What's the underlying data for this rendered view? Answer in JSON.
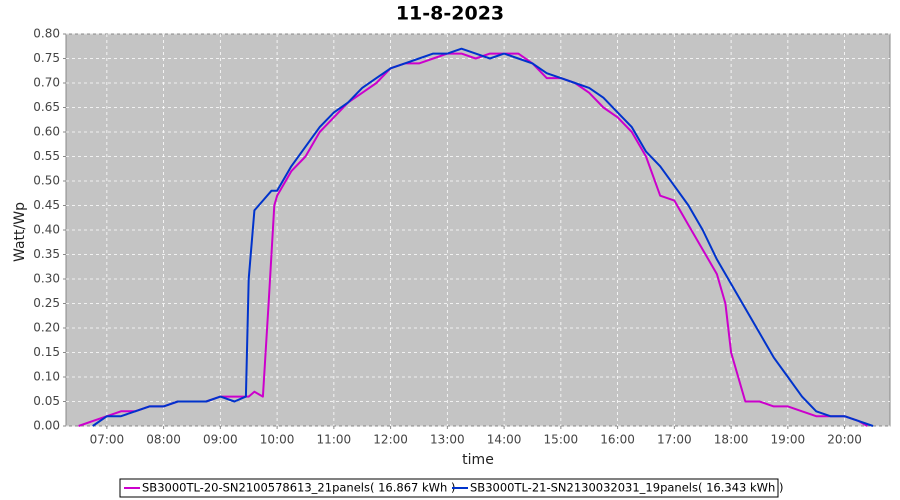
{
  "chart_data": {
    "type": "line",
    "title": "11-8-2023",
    "xlabel": "time",
    "ylabel": "Watt/Wp",
    "xlim": [
      6.28,
      20.8
    ],
    "ylim": [
      0,
      0.8
    ],
    "xticks": [
      {
        "value": 7,
        "label": "07:00"
      },
      {
        "value": 8,
        "label": "08:00"
      },
      {
        "value": 9,
        "label": "09:00"
      },
      {
        "value": 10,
        "label": "10:00"
      },
      {
        "value": 11,
        "label": "11:00"
      },
      {
        "value": 12,
        "label": "12:00"
      },
      {
        "value": 13,
        "label": "13:00"
      },
      {
        "value": 14,
        "label": "14:00"
      },
      {
        "value": 15,
        "label": "15:00"
      },
      {
        "value": 16,
        "label": "16:00"
      },
      {
        "value": 17,
        "label": "17:00"
      },
      {
        "value": 18,
        "label": "18:00"
      },
      {
        "value": 19,
        "label": "19:00"
      },
      {
        "value": 20,
        "label": "20:00"
      }
    ],
    "yticks": [
      {
        "value": 0,
        "label": "0.00"
      },
      {
        "value": 0.05,
        "label": "0.05"
      },
      {
        "value": 0.1,
        "label": "0.10"
      },
      {
        "value": 0.15,
        "label": "0.15"
      },
      {
        "value": 0.2,
        "label": "0.20"
      },
      {
        "value": 0.25,
        "label": "0.25"
      },
      {
        "value": 0.3,
        "label": "0.30"
      },
      {
        "value": 0.35,
        "label": "0.35"
      },
      {
        "value": 0.4,
        "label": "0.40"
      },
      {
        "value": 0.45,
        "label": "0.45"
      },
      {
        "value": 0.5,
        "label": "0.50"
      },
      {
        "value": 0.55,
        "label": "0.55"
      },
      {
        "value": 0.6,
        "label": "0.60"
      },
      {
        "value": 0.65,
        "label": "0.65"
      },
      {
        "value": 0.7,
        "label": "0.70"
      },
      {
        "value": 0.75,
        "label": "0.75"
      },
      {
        "value": 0.8,
        "label": "0.80"
      }
    ],
    "grid": true,
    "legend": "bottom",
    "series": [
      {
        "name": "SB3000TL-20-SN2100578613_21panels( 16.867 kWh )",
        "color": "#cc00cc",
        "x": [
          6.5,
          6.75,
          7,
          7.25,
          7.5,
          7.75,
          8,
          8.25,
          8.5,
          8.75,
          9,
          9.25,
          9.5,
          9.6,
          9.75,
          9.85,
          9.95,
          10,
          10.25,
          10.5,
          10.75,
          11,
          11.25,
          11.5,
          11.75,
          12,
          12.25,
          12.5,
          12.75,
          13,
          13.25,
          13.5,
          13.75,
          14,
          14.25,
          14.5,
          14.75,
          15,
          15.25,
          15.5,
          15.75,
          16,
          16.25,
          16.5,
          16.75,
          17,
          17.25,
          17.5,
          17.75,
          17.9,
          18,
          18.25,
          18.5,
          18.75,
          19,
          19.25,
          19.5,
          19.75,
          20,
          20.25,
          20.4
        ],
        "values": [
          0.0,
          0.01,
          0.02,
          0.03,
          0.03,
          0.04,
          0.04,
          0.05,
          0.05,
          0.05,
          0.06,
          0.06,
          0.06,
          0.07,
          0.06,
          0.25,
          0.45,
          0.47,
          0.52,
          0.55,
          0.6,
          0.63,
          0.66,
          0.68,
          0.7,
          0.73,
          0.74,
          0.74,
          0.75,
          0.76,
          0.76,
          0.75,
          0.76,
          0.76,
          0.76,
          0.74,
          0.71,
          0.71,
          0.7,
          0.68,
          0.65,
          0.63,
          0.6,
          0.55,
          0.47,
          0.46,
          0.41,
          0.36,
          0.31,
          0.25,
          0.15,
          0.05,
          0.05,
          0.04,
          0.04,
          0.03,
          0.02,
          0.02,
          0.02,
          0.01,
          0.0
        ]
      },
      {
        "name": "SB3000TL-21-SN2130032031_19panels( 16.343 kWh )",
        "color": "#0033cc",
        "x": [
          6.75,
          7,
          7.25,
          7.5,
          7.75,
          8,
          8.25,
          8.5,
          8.75,
          9,
          9.25,
          9.45,
          9.5,
          9.6,
          9.75,
          9.9,
          10,
          10.25,
          10.5,
          10.75,
          11,
          11.25,
          11.5,
          11.75,
          12,
          12.25,
          12.5,
          12.75,
          13,
          13.25,
          13.5,
          13.75,
          14,
          14.25,
          14.5,
          14.75,
          15,
          15.25,
          15.5,
          15.75,
          16,
          16.25,
          16.5,
          16.75,
          17,
          17.25,
          17.5,
          17.75,
          18,
          18.25,
          18.5,
          18.75,
          19,
          19.25,
          19.5,
          19.75,
          20,
          20.25,
          20.5
        ],
        "values": [
          0.0,
          0.02,
          0.02,
          0.03,
          0.04,
          0.04,
          0.05,
          0.05,
          0.05,
          0.06,
          0.05,
          0.06,
          0.3,
          0.44,
          0.46,
          0.48,
          0.48,
          0.53,
          0.57,
          0.61,
          0.64,
          0.66,
          0.69,
          0.71,
          0.73,
          0.74,
          0.75,
          0.76,
          0.76,
          0.77,
          0.76,
          0.75,
          0.76,
          0.75,
          0.74,
          0.72,
          0.71,
          0.7,
          0.69,
          0.67,
          0.64,
          0.61,
          0.56,
          0.53,
          0.49,
          0.45,
          0.4,
          0.34,
          0.29,
          0.24,
          0.19,
          0.14,
          0.1,
          0.06,
          0.03,
          0.02,
          0.02,
          0.01,
          0.0
        ]
      }
    ]
  }
}
